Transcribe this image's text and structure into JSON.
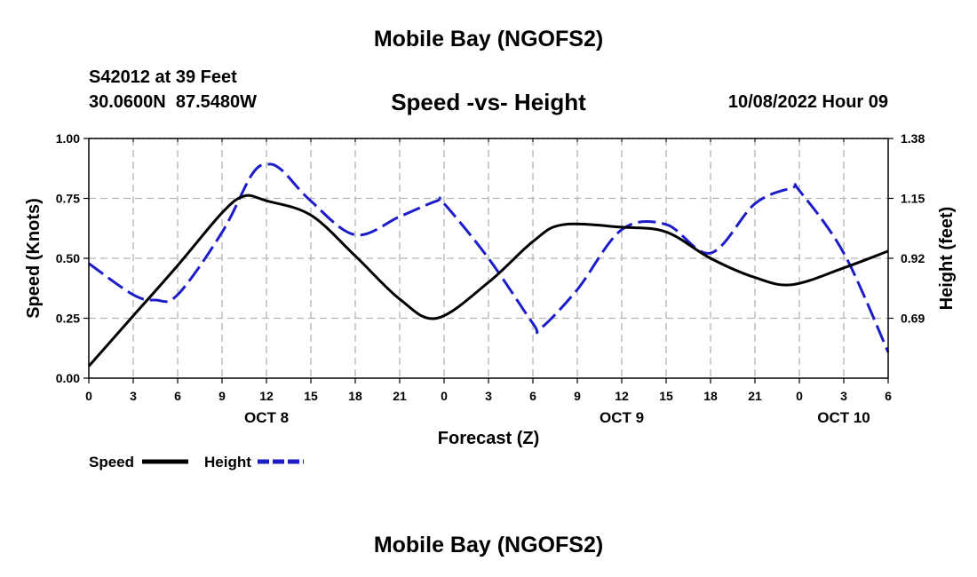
{
  "header": {
    "title": "Mobile Bay (NGOFS2)",
    "station": "S42012 at 39 Feet",
    "coords": "30.0600N  87.5480W",
    "timestamp": "10/08/2022 Hour 09"
  },
  "footer": {
    "title": "Mobile Bay (NGOFS2)"
  },
  "legend_labels": {
    "speed": "Speed",
    "height": "Height"
  },
  "colors": {
    "speed": "#000000",
    "height": "#1c1cc8",
    "grid": "#b4b4b4"
  },
  "chart_data": {
    "type": "line",
    "title": "Speed -vs- Height",
    "xlabel": "Forecast (Z)",
    "ylabel_left": "Speed (Knots)",
    "ylabel_right": "Height (feet)",
    "x_unit": "hours from 10/08/2022 00Z",
    "x_range": [
      0,
      54
    ],
    "x_ticks": [
      0,
      3,
      6,
      9,
      12,
      15,
      18,
      21,
      24,
      27,
      30,
      33,
      36,
      39,
      42,
      45,
      48,
      51,
      54
    ],
    "x_tick_labels": [
      "0",
      "3",
      "6",
      "9",
      "12",
      "15",
      "18",
      "21",
      "0",
      "3",
      "6",
      "9",
      "12",
      "15",
      "18",
      "21",
      "0",
      "3",
      "6"
    ],
    "day_labels": [
      {
        "x": 12,
        "label": "OCT 8"
      },
      {
        "x": 36,
        "label": "OCT 9"
      },
      {
        "x": 51,
        "label": "OCT 10"
      }
    ],
    "ylim_left": [
      0,
      1
    ],
    "yticks_left": [
      "0.00",
      "0.25",
      "0.50",
      "0.75",
      "1.00"
    ],
    "ylim_right": [
      0.46,
      1.38
    ],
    "yticks_right": [
      "0.69",
      "0.92",
      "1.15",
      "1.38"
    ],
    "grid": true,
    "legend_position": "bottom-left",
    "series": [
      {
        "name": "Speed",
        "axis": "left",
        "style": "solid",
        "x": [
          0,
          3,
          6,
          9,
          10.5,
          12,
          15,
          18,
          21,
          23.5,
          27,
          30,
          32,
          36,
          39,
          42,
          45,
          47.5,
          51,
          54
        ],
        "y": [
          0.05,
          0.26,
          0.47,
          0.69,
          0.76,
          0.74,
          0.68,
          0.51,
          0.33,
          0.25,
          0.4,
          0.57,
          0.64,
          0.63,
          0.61,
          0.5,
          0.42,
          0.39,
          0.46,
          0.53
        ]
      },
      {
        "name": "Height",
        "axis": "right",
        "style": "dashed",
        "x": [
          0,
          3,
          4.5,
          6,
          9,
          11,
          12,
          13,
          15,
          18,
          21,
          23.5,
          24,
          27,
          30,
          30.5,
          33,
          36,
          39,
          42,
          45,
          47.5,
          48,
          51,
          54
        ],
        "y": [
          0.9,
          0.78,
          0.76,
          0.78,
          1.02,
          1.24,
          1.28,
          1.26,
          1.14,
          1.01,
          1.08,
          1.14,
          1.13,
          0.92,
          0.67,
          0.65,
          0.8,
          1.03,
          1.05,
          0.94,
          1.13,
          1.19,
          1.18,
          0.94,
          0.56
        ]
      }
    ]
  }
}
